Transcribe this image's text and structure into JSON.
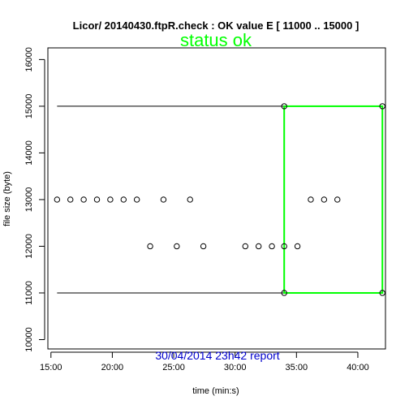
{
  "chart_data": {
    "type": "scatter",
    "title": "Licor/ 20140430.ftpR.check : OK value E [ 11000  ..  15000 ]",
    "status_text": "status ok",
    "report_text": "30/04/2014 23h42 report",
    "xlabel": "time (min:s)",
    "ylabel": "file size (byte)",
    "xlim": [
      "14:45",
      "42:15"
    ],
    "ylim": [
      9800,
      16250
    ],
    "x_ticks": [
      "15:00",
      "20:00",
      "25:00",
      "30:00",
      "35:00",
      "40:00"
    ],
    "y_ticks": [
      10000,
      11000,
      12000,
      13000,
      14000,
      15000,
      16000
    ],
    "bounds": {
      "lower": 11000,
      "upper": 15000,
      "color": "#000000"
    },
    "highlight": {
      "x_from": "34:00",
      "x_to": "42:00",
      "y_from": 11000,
      "y_to": 15000,
      "color": "#00ff00"
    },
    "points": [
      {
        "x": "15:30",
        "y": 13000
      },
      {
        "x": "16:35",
        "y": 13000
      },
      {
        "x": "17:40",
        "y": 13000
      },
      {
        "x": "18:45",
        "y": 13000
      },
      {
        "x": "19:50",
        "y": 13000
      },
      {
        "x": "20:55",
        "y": 13000
      },
      {
        "x": "22:00",
        "y": 13000
      },
      {
        "x": "23:05",
        "y": 12000
      },
      {
        "x": "24:10",
        "y": 13000
      },
      {
        "x": "25:15",
        "y": 12000
      },
      {
        "x": "26:20",
        "y": 13000
      },
      {
        "x": "27:25",
        "y": 12000
      },
      {
        "x": "30:50",
        "y": 12000
      },
      {
        "x": "31:55",
        "y": 12000
      },
      {
        "x": "33:00",
        "y": 12000
      },
      {
        "x": "34:00",
        "y": 12000
      },
      {
        "x": "35:05",
        "y": 12000
      },
      {
        "x": "36:10",
        "y": 13000
      },
      {
        "x": "37:15",
        "y": 13000
      },
      {
        "x": "38:20",
        "y": 13000
      },
      {
        "x": "34:00",
        "y": 11000
      },
      {
        "x": "34:00",
        "y": 15000
      },
      {
        "x": "42:00",
        "y": 11000
      },
      {
        "x": "42:00",
        "y": 15000
      }
    ]
  }
}
